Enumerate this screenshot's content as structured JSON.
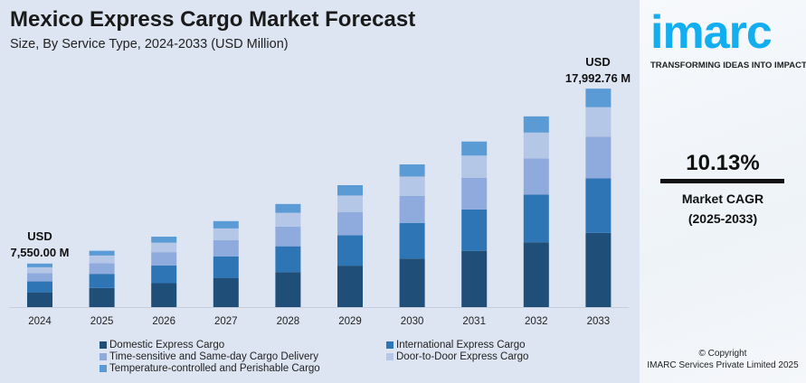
{
  "header": {
    "title": "Mexico Express Cargo Market Forecast",
    "subtitle": "Size, By Service Type, 2024-2033 (USD Million)"
  },
  "annotations": {
    "first_unit": "USD",
    "first_value": "7,550.00 M",
    "last_unit": "USD",
    "last_value": "17,992.76 M"
  },
  "chart_data": {
    "type": "bar",
    "stacked": true,
    "title": "Mexico Express Cargo Market Forecast",
    "subtitle": "Size, By Service Type, 2024-2033 (USD Million)",
    "xlabel": "",
    "ylabel": "USD Million",
    "categories": [
      "2024",
      "2025",
      "2026",
      "2027",
      "2028",
      "2029",
      "2030",
      "2031",
      "2032",
      "2033"
    ],
    "totals": [
      7550.0,
      8315,
      9157,
      10085,
      11106,
      12231,
      13470,
      14835,
      16337,
      17992.76
    ],
    "series": [
      {
        "name": "Domestic Express Cargo",
        "color": "#1f4e79",
        "values": [
          2567,
          2827,
          3113,
          3429,
          3776,
          4159,
          4580,
          5044,
          5555,
          6118
        ]
      },
      {
        "name": "International Express Cargo",
        "color": "#2e75b6",
        "values": [
          1888,
          2079,
          2289,
          2521,
          2777,
          3058,
          3368,
          3709,
          4084,
          4498
        ]
      },
      {
        "name": "Time-sensitive and Same-day Cargo Delivery",
        "color": "#8faadc",
        "values": [
          1435,
          1580,
          1740,
          1916,
          2110,
          2324,
          2559,
          2819,
          3104,
          3419
        ]
      },
      {
        "name": "Door-to-Door Express Cargo",
        "color": "#b4c7e7",
        "values": [
          1019,
          1123,
          1236,
          1361,
          1499,
          1651,
          1818,
          2003,
          2205,
          2429
        ]
      },
      {
        "name": "Temperature-controlled and Perishable Cargo",
        "color": "#5b9bd5",
        "values": [
          641,
          706,
          779,
          858,
          944,
          1039,
          1145,
          1260,
          1389,
          1529
        ]
      }
    ],
    "grid": false,
    "legend": "bottom"
  },
  "side": {
    "logo": "imarc",
    "tagline": "TRANSFORMING IDEAS INTO IMPACT",
    "cagr_value": "10.13%",
    "cagr_label": "Market CAGR",
    "cagr_period": "(2025-2033)",
    "copyright": "© Copyright",
    "company": "IMARC Services Private Limited 2025"
  }
}
